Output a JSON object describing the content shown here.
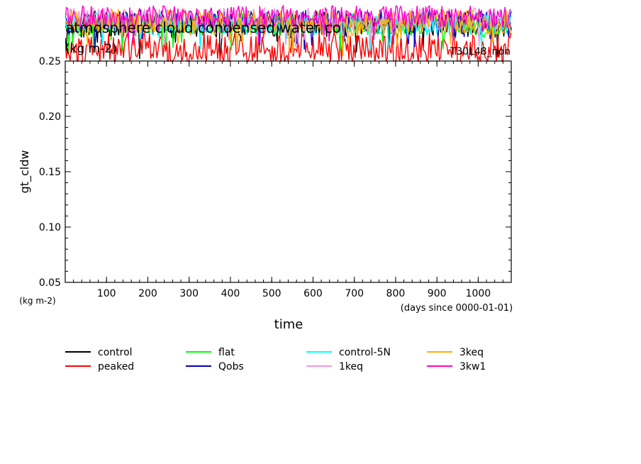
{
  "chart_data": {
    "type": "line",
    "title": "atmosphere cloud condensed water co",
    "title_units": "(kg m-2)",
    "run_label": "T30L48_non",
    "xlabel": "time",
    "xunits": "(days since 0000-01-01)",
    "ylabel": "gt_cldw",
    "yunits": "(kg m-2)",
    "xlim": [
      0,
      1080
    ],
    "ylim": [
      0.05,
      0.25
    ],
    "x_ticks": [
      100,
      200,
      300,
      400,
      500,
      600,
      700,
      800,
      900,
      1000
    ],
    "y_ticks": [
      0.05,
      0.1,
      0.15,
      0.2,
      0.25
    ],
    "x_tick_labels": [
      "100",
      "200",
      "300",
      "400",
      "500",
      "600",
      "700",
      "800",
      "900",
      "1000"
    ],
    "y_tick_labels": [
      "0.05",
      "0.10",
      "0.15",
      "0.20",
      "0.25"
    ],
    "grid": false,
    "legend_position": "bottom",
    "note": "",
    "series": [
      {
        "name": "control",
        "color": "#000000",
        "base": 0.283,
        "amp": 0.012
      },
      {
        "name": "peaked",
        "color": "#ff0000",
        "base": 0.262,
        "amp": 0.014
      },
      {
        "name": "flat",
        "color": "#00ff00",
        "base": 0.283,
        "amp": 0.01
      },
      {
        "name": "Qobs",
        "color": "#0000c8",
        "base": 0.286,
        "amp": 0.01
      },
      {
        "name": "control-5N",
        "color": "#00ffff",
        "base": 0.284,
        "amp": 0.01
      },
      {
        "name": "1keq",
        "color": "#ee99dd",
        "base": 0.288,
        "amp": 0.01
      },
      {
        "name": "3keq",
        "color": "#ffb000",
        "base": 0.285,
        "amp": 0.012
      },
      {
        "name": "3kw1",
        "color": "#ff00cc",
        "base": 0.29,
        "amp": 0.01
      }
    ]
  }
}
